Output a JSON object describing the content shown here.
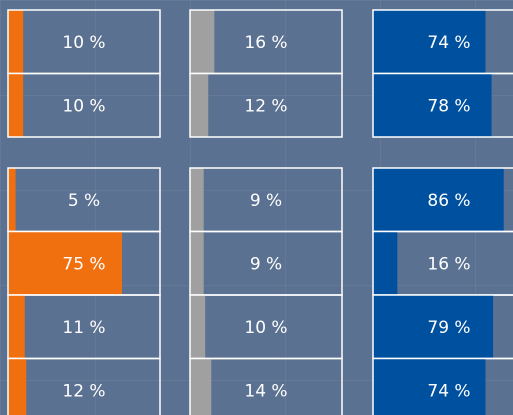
{
  "colors": [
    "#f07010",
    "#a0a0a0",
    "#0050a0"
  ],
  "groups": [
    {
      "rows": [
        [
          {
            "value": 10,
            "label": "10 %"
          },
          {
            "value": 16,
            "label": "16 %"
          },
          {
            "value": 74,
            "label": "74 %"
          }
        ],
        [
          {
            "value": 10,
            "label": "10 %"
          },
          {
            "value": 12,
            "label": "12 %"
          },
          {
            "value": 78,
            "label": "78 %"
          }
        ]
      ]
    },
    {
      "rows": [
        [
          {
            "value": 5,
            "label": "5 %"
          },
          {
            "value": 9,
            "label": "9 %"
          },
          {
            "value": 86,
            "label": "86 %"
          }
        ],
        [
          {
            "value": 75,
            "label": "75 %"
          },
          {
            "value": 9,
            "label": "9 %"
          },
          {
            "value": 16,
            "label": "16 %"
          }
        ],
        [
          {
            "value": 11,
            "label": "11 %"
          },
          {
            "value": 10,
            "label": "10 %"
          },
          {
            "value": 79,
            "label": "79 %"
          }
        ],
        [
          {
            "value": 12,
            "label": "12 %"
          },
          {
            "value": 14,
            "label": "14 %"
          },
          {
            "value": 74,
            "label": "74 %"
          }
        ]
      ]
    }
  ]
}
